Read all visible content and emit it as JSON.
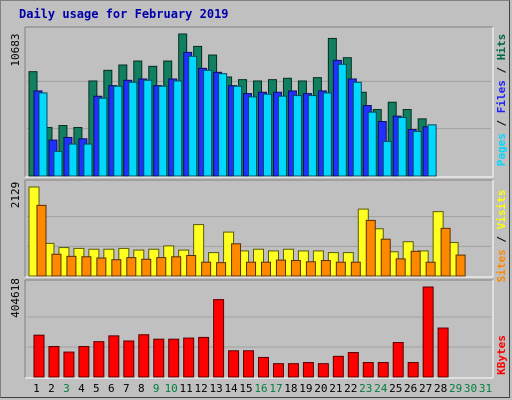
{
  "chart_data": [
    {
      "type": "bar",
      "title": "Daily usage for February 2019",
      "ymax_label": "10683",
      "ymax": 10683,
      "right_legend": [
        {
          "text": "Pages",
          "color": "#00d8ff"
        },
        {
          "text": " / ",
          "color": "#000000"
        },
        {
          "text": "Files",
          "color": "#2020ff"
        },
        {
          "text": " / ",
          "color": "#000000"
        },
        {
          "text": "Hits",
          "color": "#006848"
        }
      ],
      "categories": [
        "1",
        "2",
        "3",
        "4",
        "5",
        "6",
        "7",
        "8",
        "9",
        "10",
        "11",
        "12",
        "13",
        "14",
        "15",
        "16",
        "17",
        "18",
        "19",
        "20",
        "21",
        "22",
        "23",
        "24",
        "25",
        "26",
        "27",
        "28",
        "29",
        "30",
        "31"
      ],
      "series": [
        {
          "name": "Hits",
          "color": "#108060",
          "values": [
            7850,
            3650,
            3800,
            3650,
            7150,
            7950,
            8350,
            8650,
            8250,
            8650,
            10683,
            9750,
            9100,
            7450,
            7250,
            7150,
            7250,
            7350,
            7150,
            7400,
            10350,
            8900,
            6300,
            5000,
            5550,
            5000,
            4300,
            null,
            null,
            null,
            null
          ]
        },
        {
          "name": "Files",
          "color": "#2030ff",
          "values": [
            6400,
            2700,
            2900,
            2800,
            6000,
            6800,
            7200,
            7300,
            6800,
            7300,
            9300,
            8100,
            7800,
            6800,
            6200,
            6300,
            6300,
            6400,
            6200,
            6400,
            8700,
            7300,
            5300,
            4100,
            4500,
            3500,
            3700,
            null,
            null,
            null,
            null
          ]
        },
        {
          "name": "Pages",
          "color": "#00d8ff",
          "values": [
            6250,
            1850,
            2400,
            2400,
            5850,
            6750,
            7050,
            7200,
            6750,
            7150,
            9000,
            7950,
            7700,
            6750,
            5950,
            6150,
            6000,
            6050,
            6050,
            6250,
            8400,
            7050,
            4800,
            2600,
            4400,
            3350,
            3850,
            null,
            null,
            null,
            null
          ]
        }
      ]
    },
    {
      "type": "bar",
      "ymax_label": "2129",
      "ymax": 2129,
      "right_legend": [
        {
          "text": "Sites",
          "color": "#ff8800"
        },
        {
          "text": " / ",
          "color": "#000000"
        },
        {
          "text": "Visits",
          "color": "#ffff00"
        }
      ],
      "series": [
        {
          "name": "Visits",
          "color": "#ffff20",
          "values": [
            2129,
            780,
            680,
            660,
            640,
            640,
            660,
            620,
            640,
            720,
            620,
            1230,
            560,
            1050,
            600,
            640,
            600,
            640,
            600,
            600,
            560,
            560,
            1600,
            1130,
            580,
            820,
            600,
            1540,
            800,
            null,
            null,
            null
          ]
        },
        {
          "name": "Sites",
          "color": "#ff8800",
          "values": [
            1690,
            520,
            470,
            460,
            430,
            390,
            440,
            400,
            440,
            460,
            490,
            330,
            320,
            770,
            330,
            330,
            380,
            370,
            340,
            370,
            330,
            330,
            1330,
            880,
            410,
            590,
            330,
            1140,
            500,
            null,
            null,
            null
          ]
        }
      ]
    },
    {
      "type": "bar",
      "ymax_label": "404618",
      "ymax": 404618,
      "right_legend": [
        {
          "text": "KBytes",
          "color": "#ff0000"
        }
      ],
      "series": [
        {
          "name": "KBytes",
          "color": "#ff0000",
          "values": [
            188000,
            137000,
            112000,
            137000,
            159000,
            185000,
            162000,
            190000,
            170000,
            170000,
            175000,
            178000,
            348000,
            118000,
            118000,
            88000,
            60000,
            60000,
            65000,
            60000,
            93000,
            110000,
            65000,
            65000,
            155000,
            65000,
            404618,
            220000,
            null,
            null,
            null
          ]
        }
      ]
    }
  ],
  "title": "Daily usage for February 2019",
  "x_labels": [
    {
      "text": "1",
      "color": "#000000"
    },
    {
      "text": "2",
      "color": "#000000"
    },
    {
      "text": "3",
      "color": "#008040"
    },
    {
      "text": "4",
      "color": "#000000"
    },
    {
      "text": "5",
      "color": "#000000"
    },
    {
      "text": "6",
      "color": "#000000"
    },
    {
      "text": "7",
      "color": "#000000"
    },
    {
      "text": "8",
      "color": "#000000"
    },
    {
      "text": "9",
      "color": "#008040"
    },
    {
      "text": "10",
      "color": "#008040"
    },
    {
      "text": "11",
      "color": "#000000"
    },
    {
      "text": "12",
      "color": "#000000"
    },
    {
      "text": "13",
      "color": "#000000"
    },
    {
      "text": "14",
      "color": "#000000"
    },
    {
      "text": "15",
      "color": "#000000"
    },
    {
      "text": "16",
      "color": "#008040"
    },
    {
      "text": "17",
      "color": "#008040"
    },
    {
      "text": "18",
      "color": "#000000"
    },
    {
      "text": "19",
      "color": "#000000"
    },
    {
      "text": "20",
      "color": "#000000"
    },
    {
      "text": "21",
      "color": "#000000"
    },
    {
      "text": "22",
      "color": "#000000"
    },
    {
      "text": "23",
      "color": "#008040"
    },
    {
      "text": "24",
      "color": "#008040"
    },
    {
      "text": "25",
      "color": "#000000"
    },
    {
      "text": "26",
      "color": "#000000"
    },
    {
      "text": "27",
      "color": "#000000"
    },
    {
      "text": "28",
      "color": "#000000"
    },
    {
      "text": "29",
      "color": "#008040"
    },
    {
      "text": "30",
      "color": "#008040"
    },
    {
      "text": "31",
      "color": "#008040"
    }
  ]
}
